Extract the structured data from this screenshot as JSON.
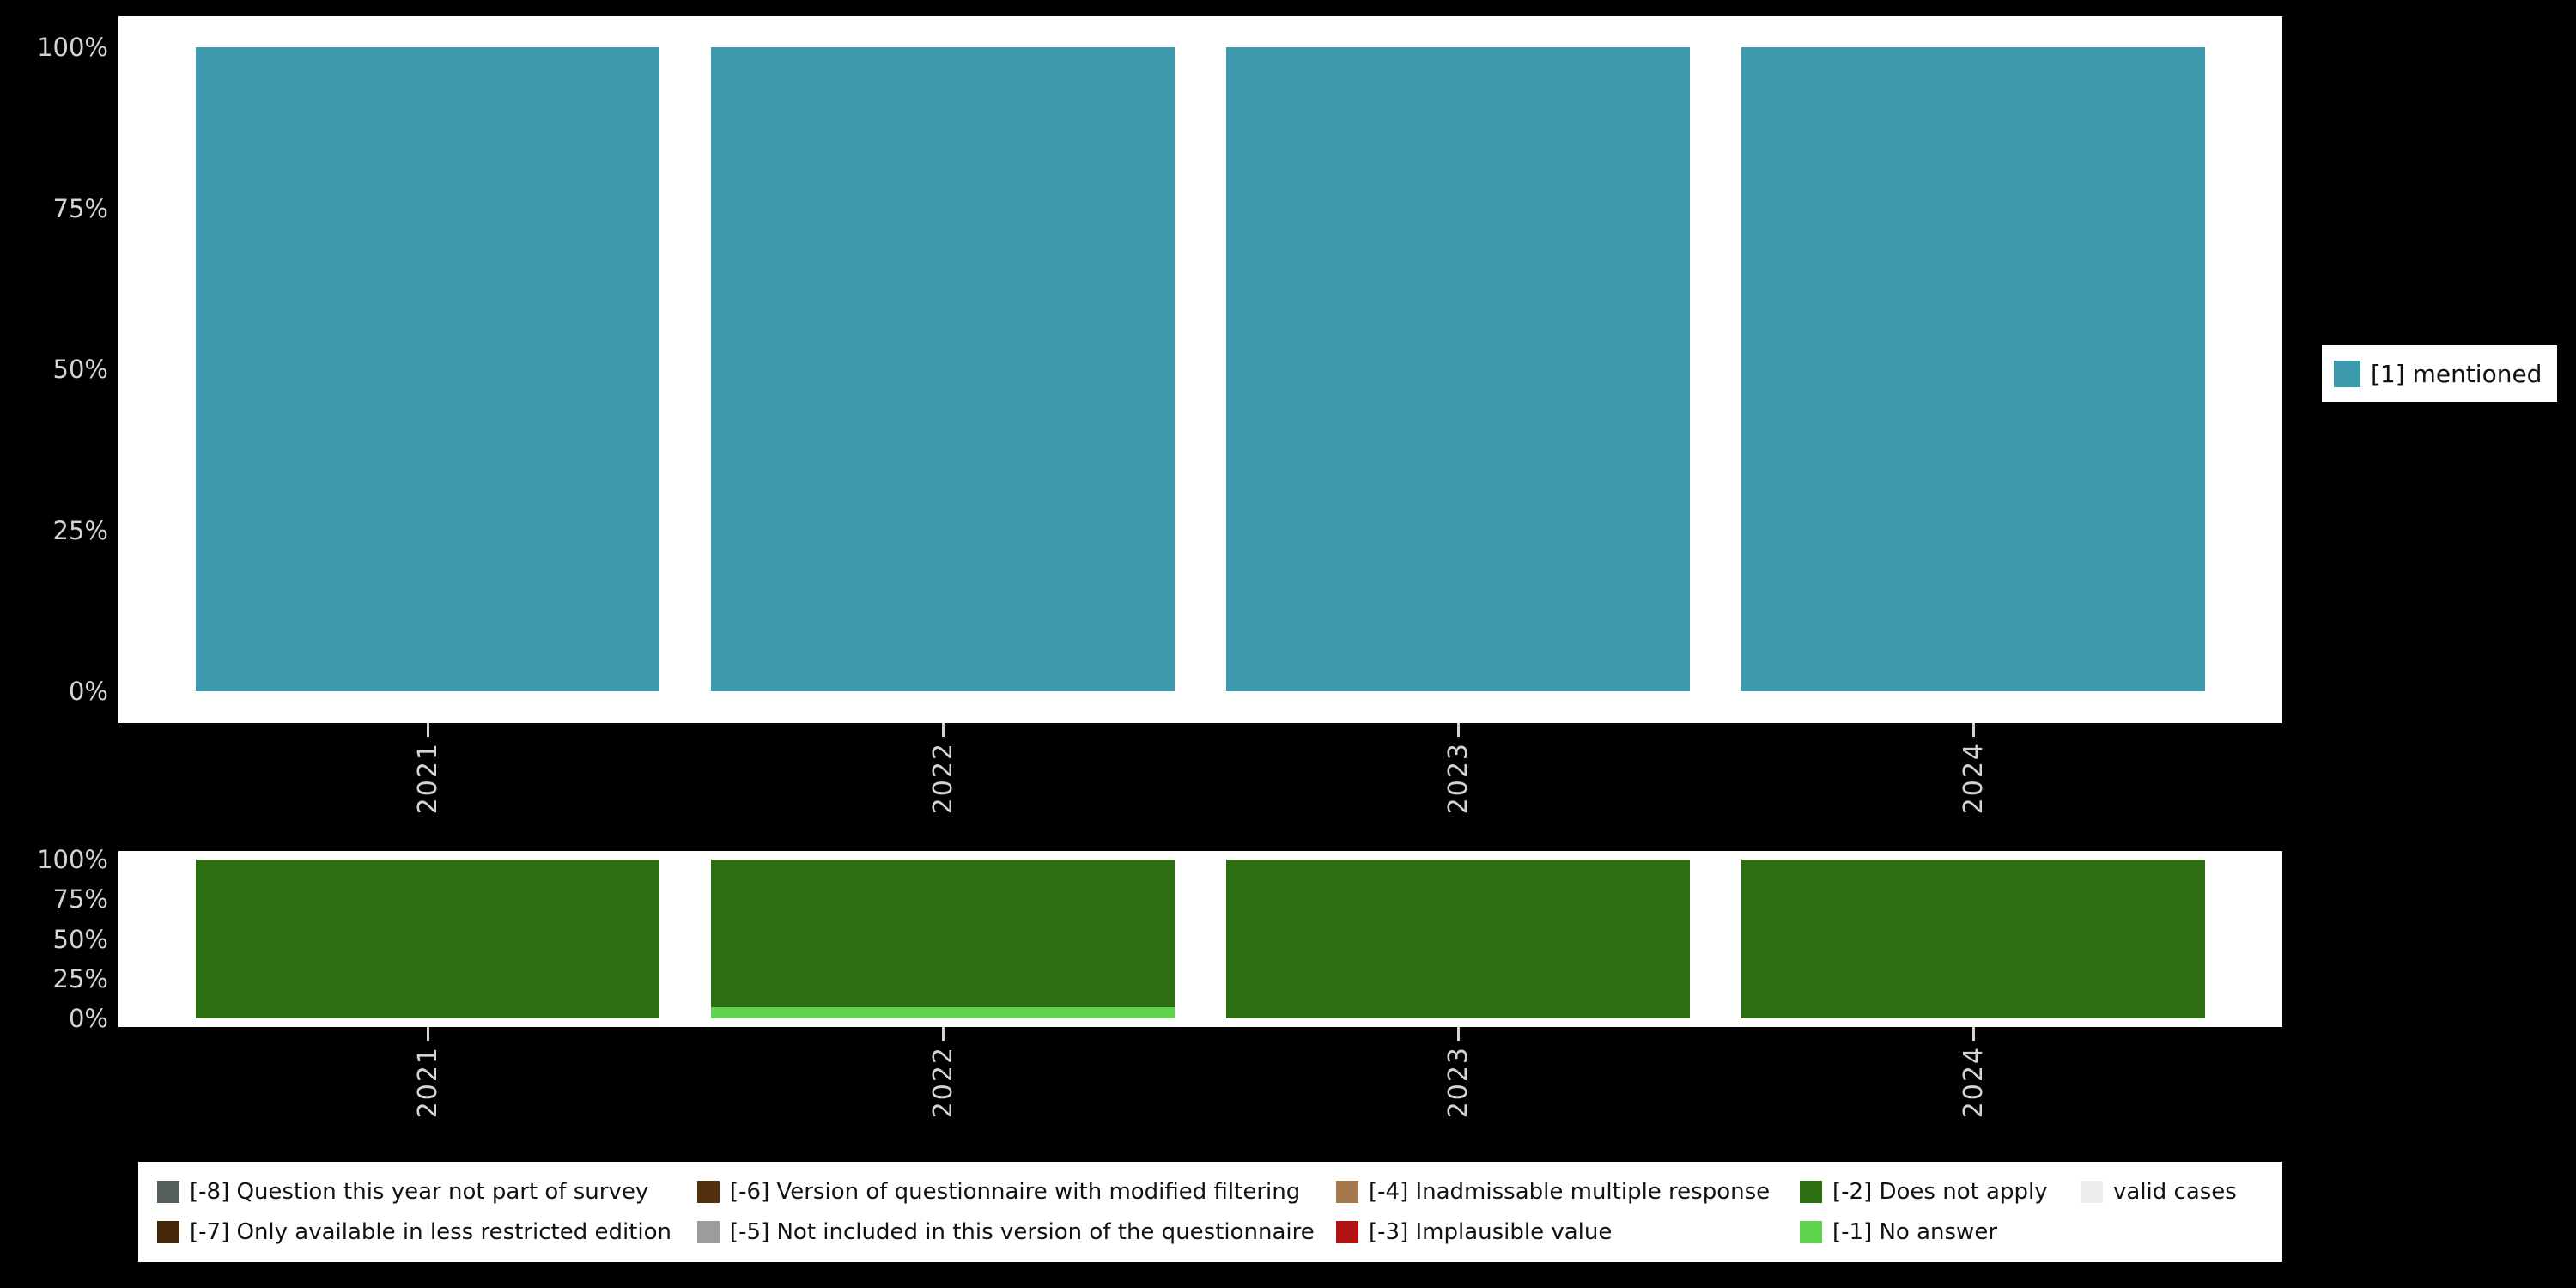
{
  "chart_data": [
    {
      "type": "bar",
      "title": "",
      "categories": [
        "2021",
        "2022",
        "2023",
        "2024"
      ],
      "series": [
        {
          "name": "[1] mentioned",
          "color": "#3d99ae",
          "values": [
            100,
            100,
            100,
            100
          ]
        }
      ],
      "xlabel": "",
      "ylabel": "",
      "ylim": [
        0,
        100
      ],
      "yticks": [
        "100%",
        "75%",
        "50%",
        "25%",
        "0%"
      ],
      "grid": false,
      "legend_position": "right"
    },
    {
      "type": "bar",
      "stacked": true,
      "title": "",
      "categories": [
        "2021",
        "2022",
        "2023",
        "2024"
      ],
      "series": [
        {
          "name": "[-1] No answer",
          "color": "#5ed24d",
          "values": [
            0,
            7,
            0,
            0
          ]
        },
        {
          "name": "[-2] Does not apply",
          "color": "#2d6e10",
          "values": [
            100,
            93,
            100,
            100
          ]
        }
      ],
      "xlabel": "",
      "ylabel": "",
      "ylim": [
        0,
        100
      ],
      "yticks": [
        "100%",
        "75%",
        "50%",
        "25%",
        "0%"
      ],
      "grid": false,
      "legend_position": "bottom"
    }
  ],
  "legend_right": {
    "rows": [
      [
        {
          "label": "[1] mentioned",
          "color": "#3d99ae"
        }
      ]
    ]
  },
  "legend_bottom": {
    "rows": [
      [
        {
          "label": "[-8] Question this year not part of survey",
          "color": "#565f5d"
        },
        {
          "label": "[-6] Version of questionnaire with modified filtering",
          "color": "#53300e"
        },
        {
          "label": "[-4] Inadmissable multiple response",
          "color": "#a3794d"
        },
        {
          "label": "[-2] Does not apply",
          "color": "#2d6e10"
        },
        {
          "label": "valid cases",
          "color": "#ebeeea"
        }
      ],
      [
        {
          "label": "[-7] Only available in less restricted edition",
          "color": "#432708"
        },
        {
          "label": "[-5] Not included in this version of the questionnaire",
          "color": "#9c9c9c"
        },
        {
          "label": "[-3] Implausible value",
          "color": "#b11212"
        },
        {
          "label": "[-1] No answer",
          "color": "#5ed24d"
        }
      ]
    ]
  }
}
